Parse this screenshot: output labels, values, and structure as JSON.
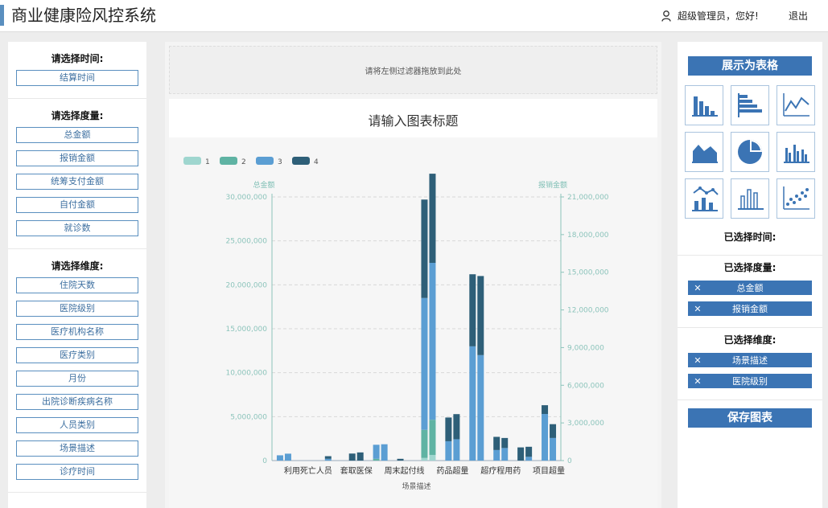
{
  "header": {
    "title": "商业健康险风控系统",
    "greeting": "超级管理员，您好!",
    "logout": "退出",
    "accent_color": "#5a8fbf"
  },
  "left": {
    "time": {
      "title": "请选择时间:",
      "items": [
        "结算时间"
      ]
    },
    "measures": {
      "title": "请选择度量:",
      "items": [
        "总金额",
        "报销金额",
        "统筹支付金额",
        "自付金额",
        "就诊数"
      ]
    },
    "dimensions": {
      "title": "请选择维度:",
      "items": [
        "住院天数",
        "医院级别",
        "医疗机构名称",
        "医疗类别",
        "月份",
        "出院诊断疾病名称",
        "人员类别",
        "场景描述",
        "诊疗时间"
      ]
    }
  },
  "center": {
    "dropzone": "请将左侧过滤器拖放到此处",
    "chart_title": "请输入图表标题"
  },
  "chart_data": {
    "type": "bar",
    "stacked": true,
    "xlabel": "场景描述",
    "ylabel_left": "总金额",
    "ylabel_right": "报销金额",
    "ylim_left": [
      0,
      30000000
    ],
    "ylim_right": [
      0,
      21000000
    ],
    "yticks_left": [
      "0",
      "5,000,000",
      "10,000,000",
      "15,000,000",
      "20,000,000",
      "25,000,000",
      "30,000,000"
    ],
    "yticks_right": [
      "0",
      "3,000,000",
      "6,000,000",
      "9,000,000",
      "12,000,000",
      "15,000,000",
      "18,000,000",
      "21,000,000"
    ],
    "xtick_labels": [
      "利用死亡人员",
      "套取医保",
      "周末起付线",
      "药品超量",
      "超疗程用药",
      "项目超量"
    ],
    "legend": [
      "1",
      "2",
      "3",
      "4"
    ],
    "legend_position": "top-left",
    "colors": [
      "#9fd6cf",
      "#5fb3a3",
      "#5b9ed3",
      "#2e5f78"
    ],
    "grid": true,
    "categories": 12,
    "series": [
      {
        "name": "1",
        "left": [
          0,
          0,
          0,
          0,
          0,
          0,
          300000,
          0,
          0,
          0,
          0,
          0
        ],
        "right": [
          0,
          0,
          0,
          0,
          0,
          0,
          450000,
          0,
          0,
          0,
          0,
          0
        ]
      },
      {
        "name": "2",
        "left": [
          0,
          0,
          0,
          0,
          200000,
          0,
          3200000,
          0,
          0,
          0,
          0,
          0
        ],
        "right": [
          0,
          0,
          0,
          0,
          0,
          0,
          2800000,
          0,
          0,
          0,
          0,
          0
        ]
      },
      {
        "name": "3",
        "left": [
          600000,
          0,
          200000,
          0,
          1600000,
          0,
          15000000,
          2200000,
          13000000,
          1200000,
          0,
          5300000
        ],
        "right": [
          550000,
          0,
          0,
          0,
          1300000,
          0,
          12500000,
          1700000,
          8400000,
          1000000,
          300000,
          1800000
        ]
      },
      {
        "name": "4",
        "left": [
          0,
          0,
          300000,
          800000,
          0,
          200000,
          11200000,
          2700000,
          8200000,
          1500000,
          1500000,
          1000000
        ],
        "right": [
          0,
          0,
          0,
          650000,
          0,
          0,
          7100000,
          2000000,
          6300000,
          800000,
          800000,
          1100000
        ]
      }
    ]
  },
  "right": {
    "show_table": "展示为表格",
    "chart_types": [
      "bar-chart-icon",
      "horizontal-bar-icon",
      "line-chart-icon",
      "area-chart-icon",
      "pie-chart-icon",
      "grouped-bar-icon",
      "line-bar-combo-icon",
      "column-chart-icon",
      "scatter-chart-icon"
    ],
    "selected_time_title": "已选择时间:",
    "selected_measures_title": "已选择度量:",
    "selected_measures": [
      "总金额",
      "报销金额"
    ],
    "selected_dimensions_title": "已选择维度:",
    "selected_dimensions": [
      "场景描述",
      "医院级别"
    ],
    "remove_glyph": "✕",
    "save": "保存图表",
    "button_color": "#3b74b4"
  }
}
